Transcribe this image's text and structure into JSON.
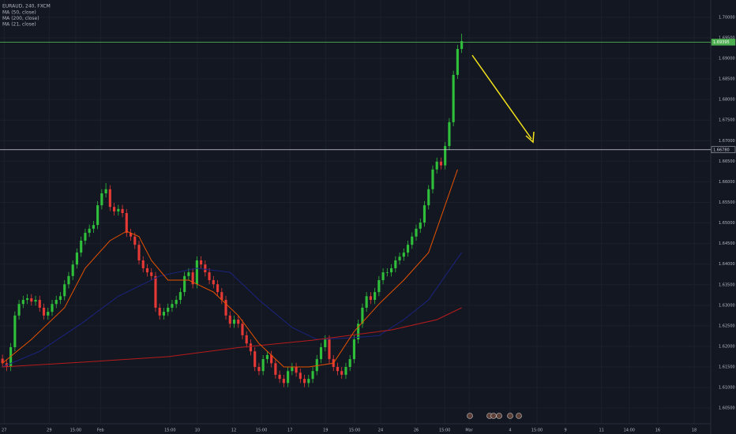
{
  "chart_data": {
    "type": "candlestick",
    "title": "EURAUD, 240, FXCM",
    "xlim": [
      -0.6,
      171.2
    ],
    "ylim": [
      1.5987,
      1.7042
    ],
    "grid": true,
    "up_color": "#2fbf3a",
    "down_color": "#e53935",
    "xticks": [
      {
        "value": 0.4,
        "label": "27"
      },
      {
        "value": 11.3,
        "label": "29"
      },
      {
        "value": 17.7,
        "label": "15:00"
      },
      {
        "value": 23.7,
        "label": "Feb"
      },
      {
        "value": 40.5,
        "label": "15:00"
      },
      {
        "value": 47.1,
        "label": "10"
      },
      {
        "value": 55.9,
        "label": "12"
      },
      {
        "value": 62.6,
        "label": "15:00"
      },
      {
        "value": 69.5,
        "label": "17"
      },
      {
        "value": 78.1,
        "label": "19"
      },
      {
        "value": 85.1,
        "label": "15:00"
      },
      {
        "value": 91.4,
        "label": "24"
      },
      {
        "value": 100,
        "label": "26"
      },
      {
        "value": 106.9,
        "label": "15:00"
      },
      {
        "value": 112.8,
        "label": "Mar"
      },
      {
        "value": 122.7,
        "label": "4"
      },
      {
        "value": 129.2,
        "label": "15:00"
      },
      {
        "value": 136.1,
        "label": "9"
      },
      {
        "value": 144.8,
        "label": "11"
      },
      {
        "value": 151.5,
        "label": "14:00"
      },
      {
        "value": 158.4,
        "label": "16"
      },
      {
        "value": 167.2,
        "label": "18"
      }
    ],
    "yticks": [
      {
        "value": 1.605,
        "label": "1.60500"
      },
      {
        "value": 1.61,
        "label": "1.61000"
      },
      {
        "value": 1.615,
        "label": "1.61500"
      },
      {
        "value": 1.62,
        "label": "1.62000"
      },
      {
        "value": 1.625,
        "label": "1.62500"
      },
      {
        "value": 1.63,
        "label": "1.63000"
      },
      {
        "value": 1.635,
        "label": "1.63500"
      },
      {
        "value": 1.64,
        "label": "1.64000"
      },
      {
        "value": 1.645,
        "label": "1.64500"
      },
      {
        "value": 1.65,
        "label": "1.65000"
      },
      {
        "value": 1.655,
        "label": "1.65500"
      },
      {
        "value": 1.66,
        "label": "1.66000"
      },
      {
        "value": 1.665,
        "label": "1.66500"
      },
      {
        "value": 1.67,
        "label": "1.67000"
      },
      {
        "value": 1.675,
        "label": "1.67500"
      },
      {
        "value": 1.68,
        "label": "1.68000"
      },
      {
        "value": 1.685,
        "label": "1.68500"
      },
      {
        "value": 1.69,
        "label": "1.69000"
      },
      {
        "value": 1.695,
        "label": "1.69500"
      },
      {
        "value": 1.7,
        "label": "1.70000"
      }
    ],
    "candles": [
      [
        1.617,
        1.618,
        1.6149,
        1.6159
      ],
      [
        1.6159,
        1.6169,
        1.614,
        1.615
      ],
      [
        1.615,
        1.6208,
        1.614,
        1.6198
      ],
      [
        1.6198,
        1.6285,
        1.6188,
        1.6275
      ],
      [
        1.6275,
        1.6313,
        1.6265,
        1.6303
      ],
      [
        1.6303,
        1.6323,
        1.6293,
        1.6313
      ],
      [
        1.6313,
        1.6327,
        1.6303,
        1.6317
      ],
      [
        1.6317,
        1.6327,
        1.6299,
        1.6309
      ],
      [
        1.6309,
        1.6323,
        1.6299,
        1.6313
      ],
      [
        1.6313,
        1.6323,
        1.6284,
        1.6294
      ],
      [
        1.6294,
        1.6304,
        1.6265,
        1.6275
      ],
      [
        1.6275,
        1.6294,
        1.6265,
        1.6284
      ],
      [
        1.6284,
        1.6313,
        1.6274,
        1.6303
      ],
      [
        1.6303,
        1.6323,
        1.6293,
        1.6313
      ],
      [
        1.6313,
        1.6332,
        1.6303,
        1.6322
      ],
      [
        1.6322,
        1.6361,
        1.6312,
        1.6351
      ],
      [
        1.6351,
        1.6381,
        1.6341,
        1.6371
      ],
      [
        1.6371,
        1.6409,
        1.6361,
        1.6399
      ],
      [
        1.6399,
        1.6438,
        1.6389,
        1.6428
      ],
      [
        1.6428,
        1.6467,
        1.6418,
        1.6457
      ],
      [
        1.6457,
        1.6486,
        1.6447,
        1.6476
      ],
      [
        1.6476,
        1.6496,
        1.6466,
        1.6486
      ],
      [
        1.6486,
        1.6505,
        1.6476,
        1.6495
      ],
      [
        1.6495,
        1.6553,
        1.6485,
        1.6543
      ],
      [
        1.6543,
        1.6582,
        1.6533,
        1.6572
      ],
      [
        1.6572,
        1.6597,
        1.6562,
        1.6582
      ],
      [
        1.6582,
        1.6592,
        1.6529,
        1.6539
      ],
      [
        1.6539,
        1.6549,
        1.6518,
        1.6528
      ],
      [
        1.6528,
        1.6544,
        1.6518,
        1.6534
      ],
      [
        1.6534,
        1.6544,
        1.6514,
        1.6524
      ],
      [
        1.6524,
        1.6534,
        1.6466,
        1.6476
      ],
      [
        1.6476,
        1.6486,
        1.6457,
        1.6467
      ],
      [
        1.6467,
        1.6477,
        1.6437,
        1.6447
      ],
      [
        1.6447,
        1.6457,
        1.6399,
        1.6409
      ],
      [
        1.6409,
        1.6419,
        1.638,
        1.639
      ],
      [
        1.639,
        1.64,
        1.637,
        1.638
      ],
      [
        1.638,
        1.639,
        1.6361,
        1.6371
      ],
      [
        1.6371,
        1.6381,
        1.6284,
        1.6294
      ],
      [
        1.6294,
        1.6304,
        1.6265,
        1.6275
      ],
      [
        1.6275,
        1.6294,
        1.6265,
        1.6284
      ],
      [
        1.6284,
        1.6304,
        1.6274,
        1.6294
      ],
      [
        1.6294,
        1.6313,
        1.6284,
        1.6303
      ],
      [
        1.6303,
        1.6323,
        1.6293,
        1.6313
      ],
      [
        1.6313,
        1.6342,
        1.6303,
        1.6332
      ],
      [
        1.6332,
        1.6381,
        1.6322,
        1.6371
      ],
      [
        1.6371,
        1.639,
        1.6361,
        1.638
      ],
      [
        1.638,
        1.639,
        1.6341,
        1.6351
      ],
      [
        1.6351,
        1.6419,
        1.6341,
        1.6409
      ],
      [
        1.6409,
        1.6419,
        1.6389,
        1.6399
      ],
      [
        1.6399,
        1.6409,
        1.637,
        1.638
      ],
      [
        1.638,
        1.639,
        1.6351,
        1.6361
      ],
      [
        1.6361,
        1.6371,
        1.6341,
        1.6351
      ],
      [
        1.6351,
        1.6361,
        1.6322,
        1.6332
      ],
      [
        1.6332,
        1.6342,
        1.6303,
        1.6313
      ],
      [
        1.6313,
        1.6323,
        1.6265,
        1.6275
      ],
      [
        1.6275,
        1.6285,
        1.6245,
        1.6255
      ],
      [
        1.6255,
        1.6275,
        1.6245,
        1.6265
      ],
      [
        1.6265,
        1.6275,
        1.6245,
        1.6255
      ],
      [
        1.6255,
        1.6265,
        1.6217,
        1.6227
      ],
      [
        1.6227,
        1.6237,
        1.6197,
        1.6207
      ],
      [
        1.6207,
        1.6217,
        1.6178,
        1.6188
      ],
      [
        1.6188,
        1.6198,
        1.614,
        1.615
      ],
      [
        1.615,
        1.616,
        1.613,
        1.614
      ],
      [
        1.614,
        1.6179,
        1.613,
        1.6169
      ],
      [
        1.6169,
        1.6189,
        1.6159,
        1.6179
      ],
      [
        1.6179,
        1.6189,
        1.6149,
        1.6159
      ],
      [
        1.6159,
        1.6169,
        1.6121,
        1.6131
      ],
      [
        1.6131,
        1.6141,
        1.6111,
        1.6121
      ],
      [
        1.6121,
        1.6131,
        1.6101,
        1.6111
      ],
      [
        1.6111,
        1.615,
        1.6101,
        1.614
      ],
      [
        1.614,
        1.616,
        1.613,
        1.615
      ],
      [
        1.615,
        1.616,
        1.6126,
        1.6136
      ],
      [
        1.6136,
        1.6146,
        1.6111,
        1.6121
      ],
      [
        1.6121,
        1.6131,
        1.6101,
        1.6111
      ],
      [
        1.6111,
        1.6131,
        1.6101,
        1.6121
      ],
      [
        1.6121,
        1.615,
        1.6111,
        1.614
      ],
      [
        1.614,
        1.6179,
        1.613,
        1.6169
      ],
      [
        1.6169,
        1.6208,
        1.6159,
        1.6198
      ],
      [
        1.6198,
        1.6227,
        1.6188,
        1.6217
      ],
      [
        1.6217,
        1.6227,
        1.6159,
        1.6169
      ],
      [
        1.6169,
        1.6179,
        1.614,
        1.615
      ],
      [
        1.615,
        1.616,
        1.613,
        1.614
      ],
      [
        1.614,
        1.615,
        1.6121,
        1.6131
      ],
      [
        1.6131,
        1.616,
        1.6121,
        1.615
      ],
      [
        1.615,
        1.6179,
        1.614,
        1.6169
      ],
      [
        1.6169,
        1.6227,
        1.6159,
        1.6217
      ],
      [
        1.6217,
        1.6265,
        1.6207,
        1.6255
      ],
      [
        1.6255,
        1.6304,
        1.6245,
        1.6294
      ],
      [
        1.6294,
        1.6332,
        1.6284,
        1.6322
      ],
      [
        1.6322,
        1.6332,
        1.6303,
        1.6313
      ],
      [
        1.6313,
        1.6342,
        1.6303,
        1.6332
      ],
      [
        1.6332,
        1.6371,
        1.6322,
        1.6361
      ],
      [
        1.6361,
        1.639,
        1.6351,
        1.638
      ],
      [
        1.638,
        1.639,
        1.637,
        1.638
      ],
      [
        1.638,
        1.64,
        1.637,
        1.639
      ],
      [
        1.639,
        1.6419,
        1.638,
        1.6409
      ],
      [
        1.6409,
        1.6428,
        1.6399,
        1.6418
      ],
      [
        1.6418,
        1.6438,
        1.6408,
        1.6428
      ],
      [
        1.6428,
        1.6457,
        1.6418,
        1.6447
      ],
      [
        1.6447,
        1.6477,
        1.6437,
        1.6467
      ],
      [
        1.6467,
        1.6496,
        1.6457,
        1.6486
      ],
      [
        1.6486,
        1.6511,
        1.6476,
        1.6501
      ],
      [
        1.6501,
        1.6553,
        1.6491,
        1.6543
      ],
      [
        1.6543,
        1.6592,
        1.6533,
        1.6582
      ],
      [
        1.6582,
        1.664,
        1.6572,
        1.663
      ],
      [
        1.663,
        1.6659,
        1.662,
        1.6649
      ],
      [
        1.6649,
        1.6659,
        1.663,
        1.664
      ],
      [
        1.664,
        1.6697,
        1.663,
        1.6687
      ],
      [
        1.6687,
        1.6755,
        1.6677,
        1.6745
      ],
      [
        1.6745,
        1.687,
        1.6735,
        1.686
      ],
      [
        1.686,
        1.6933,
        1.685,
        1.6923
      ],
      [
        1.6923,
        1.696,
        1.6913,
        1.6942
      ]
    ],
    "series": [
      {
        "name": "MA (50, close)",
        "color": "#1a237e",
        "x": [
          0,
          9,
          19,
          28,
          38,
          47,
          55,
          62,
          70,
          76,
          83,
          91,
          97,
          103,
          107,
          111
        ],
        "values": [
          1.615,
          1.6188,
          1.6255,
          1.6322,
          1.6371,
          1.639,
          1.638,
          1.6313,
          1.6246,
          1.6217,
          1.622,
          1.6226,
          1.6265,
          1.6313,
          1.6371,
          1.6428
        ]
      },
      {
        "name": "MA (200, close)",
        "color": "#b71c1c",
        "x": [
          0,
          20,
          40,
          57,
          75,
          94,
          105,
          111
        ],
        "values": [
          1.615,
          1.6162,
          1.6175,
          1.6197,
          1.6215,
          1.624,
          1.6265,
          1.6294
        ]
      },
      {
        "name": "MA (21, close)",
        "color": "#e65100",
        "x": [
          0,
          7,
          15,
          20,
          26,
          30,
          33,
          36,
          40,
          45,
          51,
          57,
          62,
          68,
          74,
          80,
          85,
          91,
          97,
          103,
          107,
          110
        ],
        "values": [
          1.6159,
          1.6217,
          1.6294,
          1.639,
          1.6457,
          1.648,
          1.6467,
          1.6409,
          1.6361,
          1.6361,
          1.6332,
          1.6275,
          1.6207,
          1.615,
          1.615,
          1.6159,
          1.6236,
          1.6303,
          1.6361,
          1.6428,
          1.6543,
          1.663
        ]
      }
    ],
    "hlines": [
      {
        "value": 1.69395,
        "label": "1.69395",
        "color": "#4caf50"
      },
      {
        "value": 1.6678,
        "label": "1.66780",
        "color": "#d1d4dc"
      }
    ]
  }
}
